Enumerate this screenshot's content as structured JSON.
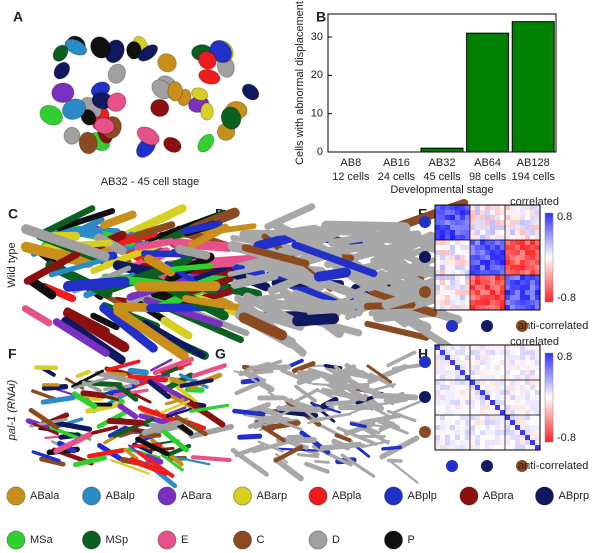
{
  "panels": {
    "A": "A",
    "B": "B",
    "C": "C",
    "D": "D",
    "E": "E",
    "F": "F",
    "G": "G",
    "H": "H"
  },
  "panel_A_caption": "AB32 - 45 cell stage",
  "row_labels": {
    "wild_type": "Wild type",
    "rnai": "pal-1 (RNAi)"
  },
  "chart_data": {
    "type": "bar",
    "categories": [
      "AB8",
      "AB16",
      "AB32",
      "AB64",
      "AB128"
    ],
    "category_sublabels": [
      "12 cells",
      "24 cells",
      "45 cells",
      "98 cells",
      "194 cells"
    ],
    "values": [
      0,
      0,
      1,
      31,
      34
    ],
    "color": "#008000",
    "ylim": [
      0,
      36
    ],
    "yticks": [
      0,
      10,
      20,
      30
    ],
    "y_label": "Cells with abnormal displacement",
    "x_label": "Developmental stage"
  },
  "matrix_E": {
    "top_label": "correlated",
    "bottom_label": "anti-correlated",
    "scale_max": 0.8,
    "scale_min": -0.8
  },
  "matrix_H": {
    "top_label": "correlated",
    "bottom_label": "anti-correlated",
    "scale_max": 0.8,
    "scale_min": -0.8
  },
  "legend": [
    {
      "name": "ABala",
      "color": "#c8901a"
    },
    {
      "name": "ABalp",
      "color": "#2a8bc8"
    },
    {
      "name": "ABara",
      "color": "#7b2fc0"
    },
    {
      "name": "ABarp",
      "color": "#d8d020"
    },
    {
      "name": "ABpla",
      "color": "#ee1c1c"
    },
    {
      "name": "ABplp",
      "color": "#2030c8"
    },
    {
      "name": "ABpra",
      "color": "#8b1010"
    },
    {
      "name": "ABprp",
      "color": "#101860"
    },
    {
      "name": "MSa",
      "color": "#30d030"
    },
    {
      "name": "MSp",
      "color": "#0a6020"
    },
    {
      "name": "E",
      "color": "#e8508a"
    },
    {
      "name": "C",
      "color": "#8b4a20"
    },
    {
      "name": "D",
      "color": "#a0a0a0"
    },
    {
      "name": "P",
      "color": "#101010"
    }
  ]
}
